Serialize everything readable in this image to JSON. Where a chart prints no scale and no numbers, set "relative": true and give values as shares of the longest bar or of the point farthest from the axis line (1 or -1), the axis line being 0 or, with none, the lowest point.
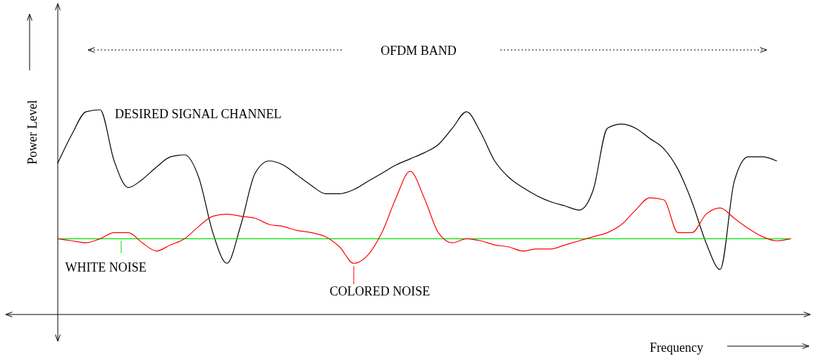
{
  "chart_data": {
    "type": "line",
    "relative": true,
    "xlabel": "Frequency",
    "ylabel": "Power Level",
    "annotations": [
      "OFDM BAND"
    ],
    "legend": "bottom left",
    "categories": [
      null,
      null,
      null,
      null,
      null,
      null,
      null,
      null,
      null,
      null,
      null,
      null,
      null,
      null,
      null,
      null,
      null,
      null,
      null,
      null,
      null,
      null,
      null,
      null,
      null,
      null,
      null,
      null,
      null,
      null,
      null,
      null,
      null,
      null,
      null,
      null,
      null,
      null,
      null,
      null,
      null,
      null,
      null,
      null,
      null,
      null,
      null,
      null,
      null,
      null,
      null,
      null,
      null
    ],
    "series": [
      {
        "name": "DESIRED SIGNAL CHANNEL",
        "color": "#000000",
        "values": [
          0.74,
          0.88,
          0.99,
          1.0,
          0.75,
          0.62,
          0.66,
          0.72,
          0.77,
          0.78,
          0.67,
          0.4,
          0.25,
          0.44,
          0.69,
          0.75,
          0.73,
          0.68,
          0.63,
          0.59,
          0.59,
          0.61,
          0.65,
          0.69,
          0.73,
          0.76,
          0.79,
          0.83,
          0.91,
          0.99,
          0.89,
          0.75,
          0.67,
          0.62,
          0.58,
          0.55,
          0.53,
          0.51,
          0.61,
          0.91,
          0.93,
          0.91,
          0.86,
          0.81,
          0.71,
          0.55,
          0.35,
          0.22,
          0.65,
          0.77,
          0.77,
          0.75,
          null
        ]
      },
      {
        "name": "WHITE NOISE",
        "color": "#00e000",
        "values": [
          0.37,
          0.37,
          0.37,
          0.37,
          0.37,
          0.37,
          0.37,
          0.37,
          0.37,
          0.37,
          0.37,
          0.37,
          0.37,
          0.37,
          0.37,
          0.37,
          0.37,
          0.37,
          0.37,
          0.37,
          0.37,
          0.37,
          0.37,
          0.37,
          0.37,
          0.37,
          0.37,
          0.37,
          0.37,
          0.37,
          0.37,
          0.37,
          0.37,
          0.37,
          0.37,
          0.37,
          0.37,
          0.37,
          0.37,
          0.37,
          0.37,
          0.37,
          0.37,
          0.37,
          0.37,
          0.37,
          0.37,
          0.37,
          0.37,
          0.37,
          0.37,
          0.37,
          0.37
        ]
      },
      {
        "name": "COLORED NOISE",
        "color": "#ff0000",
        "values": [
          0.37,
          0.36,
          0.35,
          0.37,
          0.4,
          0.4,
          0.35,
          0.31,
          0.34,
          0.37,
          0.43,
          0.48,
          0.49,
          0.48,
          0.47,
          0.44,
          0.43,
          0.41,
          0.4,
          0.38,
          0.33,
          0.25,
          0.29,
          0.4,
          0.57,
          0.7,
          0.57,
          0.4,
          0.35,
          0.37,
          0.36,
          0.34,
          0.33,
          0.31,
          0.32,
          0.32,
          0.34,
          0.36,
          0.38,
          0.4,
          0.44,
          0.51,
          0.57,
          0.56,
          0.4,
          0.4,
          0.49,
          0.52,
          0.47,
          0.42,
          0.38,
          0.36,
          0.37
        ]
      }
    ]
  }
}
